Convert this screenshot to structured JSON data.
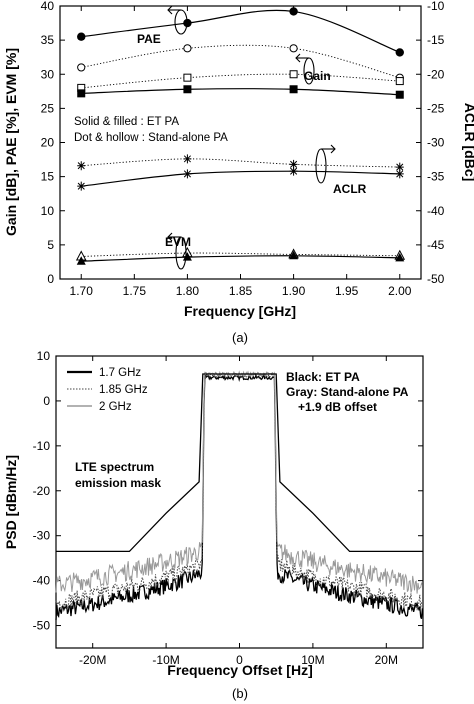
{
  "chart_data": [
    {
      "type": "line",
      "caption": "(a)",
      "xlabel": "Frequency [GHz]",
      "ylabel": "Gain [dB], PAE [%], EVM [%]",
      "y2label": "ACLR [dBc]",
      "xlim": [
        1.68,
        2.02
      ],
      "ylim": [
        0,
        40
      ],
      "y2lim": [
        -50,
        -10
      ],
      "xticks": [
        "1.70",
        "1.75",
        "1.80",
        "1.85",
        "1.90",
        "1.95",
        "2.00"
      ],
      "yticks": [
        "0",
        "5",
        "10",
        "15",
        "20",
        "25",
        "30",
        "35",
        "40"
      ],
      "y2ticks": [
        "-50",
        "-45",
        "-40",
        "-35",
        "-30",
        "-25",
        "-20",
        "-15",
        "-10"
      ],
      "x": [
        1.7,
        1.8,
        1.9,
        2.0
      ],
      "legend_note": [
        "Solid & filled : ET PA",
        "Dot & hollow : Stand-alone PA"
      ],
      "labels": {
        "pae": "PAE",
        "gain": "Gain",
        "aclr": "ACLR",
        "evm": "EVM"
      },
      "series": [
        {
          "key": "pae_et",
          "axis": "left",
          "marker": "filled-circle",
          "line": "solid",
          "values": [
            35.5,
            37.5,
            39.2,
            33.2
          ]
        },
        {
          "key": "pae_sa",
          "axis": "left",
          "marker": "hollow-circle",
          "line": "dotted",
          "values": [
            31.0,
            33.8,
            33.8,
            29.5
          ]
        },
        {
          "key": "gain_sa",
          "axis": "left",
          "marker": "hollow-square",
          "line": "dotted",
          "values": [
            28.0,
            29.5,
            30.0,
            29.0
          ]
        },
        {
          "key": "gain_et",
          "axis": "left",
          "marker": "filled-square",
          "line": "solid",
          "values": [
            27.2,
            27.8,
            27.8,
            27.0
          ]
        },
        {
          "key": "aclr_sa",
          "axis": "right",
          "marker": "asterisk",
          "line": "dotted",
          "values": [
            -33.4,
            -32.4,
            -33.2,
            -33.6
          ]
        },
        {
          "key": "aclr_et",
          "axis": "right",
          "marker": "asterisk",
          "line": "solid",
          "values": [
            -36.4,
            -34.6,
            -34.2,
            -34.6
          ]
        },
        {
          "key": "evm_sa",
          "axis": "left",
          "marker": "hollow-triangle",
          "line": "dotted",
          "values": [
            3.3,
            3.8,
            3.6,
            3.4
          ]
        },
        {
          "key": "evm_et",
          "axis": "left",
          "marker": "filled-triangle",
          "line": "solid",
          "values": [
            2.6,
            3.2,
            3.4,
            3.1
          ]
        }
      ]
    },
    {
      "type": "line",
      "caption": "(b)",
      "xlabel": "Frequency Offset [Hz]",
      "ylabel": "PSD [dBm/Hz]",
      "xlim": [
        -25,
        25
      ],
      "ylim": [
        -55,
        10
      ],
      "xticks": [
        "-20M",
        "-10M",
        "0",
        "10M",
        "20M"
      ],
      "yticks": [
        "10",
        "0",
        "-10",
        "-20",
        "-30",
        "-40",
        "-50"
      ],
      "legend": [
        "1.7 GHz",
        "1.85 GHz",
        "2 GHz"
      ],
      "note": [
        "Black: ET PA",
        "Gray: Stand-alone PA",
        "+1.9 dB offset"
      ],
      "mask_label": [
        "LTE spectrum",
        "emission mask"
      ],
      "mask": {
        "x": [
          -25,
          -15,
          -10,
          -5.5,
          -5,
          5,
          5.5,
          10,
          15,
          25
        ],
        "y": [
          -33.5,
          -33.5,
          -25,
          -18,
          6,
          6,
          -18,
          -25,
          -33.5,
          -33.5
        ]
      },
      "series": [
        {
          "name": "1.7 GHz",
          "style": "solid",
          "color": "#000000",
          "inband": 5.2,
          "edge": -35,
          "far": -47
        },
        {
          "name": "1.85 GHz",
          "style": "dotted",
          "color": "#444444",
          "inband": 5.6,
          "edge": -33,
          "far": -45
        },
        {
          "name": "2 GHz",
          "style": "solid",
          "color": "#999999",
          "inband": 6.0,
          "edge": -30,
          "far": -41
        }
      ]
    }
  ]
}
